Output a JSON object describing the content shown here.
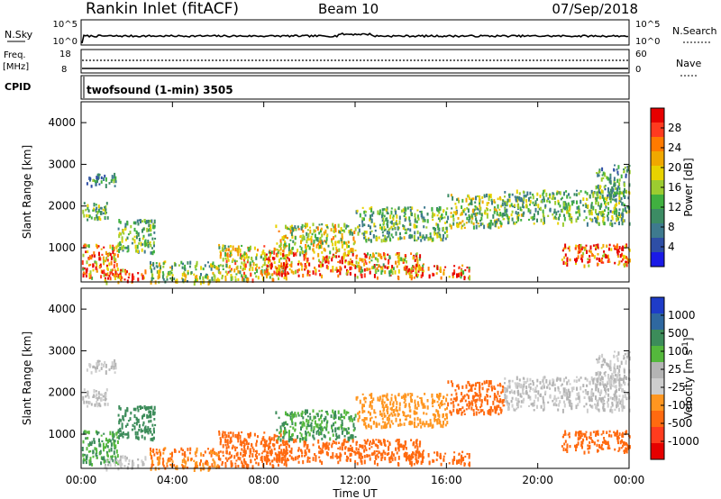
{
  "header": {
    "site": "Rankin Inlet (fitACF)",
    "beam": "Beam 10",
    "date": "07/Sep/2018"
  },
  "status_panels": {
    "nsky_label": "N.Sky",
    "nsky_ticks": [
      "10^5",
      "10^0"
    ],
    "nsearch_label": "N.Search",
    "nsearch_ticks": [
      "10^5",
      "10^0"
    ],
    "freq_label_line1": "Freq.",
    "freq_label_line2": "[MHz]",
    "freq_ticks": [
      "18",
      "8"
    ],
    "nave_label": "Nave",
    "nave_ticks": [
      "60",
      "0"
    ],
    "cpid_label": "CPID",
    "cpid_text": "twofsound (1-min) 3505"
  },
  "x_axis": {
    "title": "Time UT",
    "ticks": [
      "00:00",
      "04:00",
      "08:00",
      "12:00",
      "16:00",
      "20:00",
      "00:00"
    ]
  },
  "power_colorbar": {
    "title": "Power [dB]",
    "labels": [
      "28",
      "24",
      "20",
      "16",
      "12",
      "8",
      "4"
    ],
    "colors": [
      "#e60000",
      "#ff3a1f",
      "#ff7a00",
      "#f0a800",
      "#e8d200",
      "#9ccc30",
      "#40b040",
      "#3c8c64",
      "#3e7a8e",
      "#2e4ea6",
      "#1a1ae6"
    ]
  },
  "velocity_colorbar": {
    "title": "Velocity [m s^-1]",
    "labels": [
      "1000",
      "500",
      "100",
      "25",
      "-25",
      "-100",
      "-500",
      "-1000"
    ],
    "colors": [
      "#1e3cc8",
      "#2f68a0",
      "#3c8c5a",
      "#54b83c",
      "#b4b4b4",
      "#cdcdcd",
      "#ff9620",
      "#ff6a10",
      "#ff3c1e",
      "#e60000"
    ]
  },
  "chart_data": [
    {
      "type": "heatmap",
      "title": "Power",
      "ylabel": "Slant Range [km]",
      "xlabel": "Time UT",
      "y_ticks": [
        "1000",
        "2000",
        "3000",
        "4000"
      ],
      "ylim": [
        180,
        4500
      ],
      "xlim_hours": [
        0,
        24
      ],
      "colorbar_label": "Power [dB]",
      "regions": [
        {
          "t0": 0.0,
          "t1": 1.6,
          "r0": 300,
          "r1": 1100,
          "level": 24
        },
        {
          "t0": 0.0,
          "t1": 1.2,
          "r0": 1700,
          "r1": 2100,
          "level": 12
        },
        {
          "t0": 0.2,
          "t1": 1.5,
          "r0": 2500,
          "r1": 2800,
          "level": 8
        },
        {
          "t0": 1.0,
          "t1": 2.8,
          "r0": 200,
          "r1": 500,
          "level": 28
        },
        {
          "t0": 1.6,
          "t1": 3.2,
          "r0": 900,
          "r1": 1700,
          "level": 12
        },
        {
          "t0": 3.0,
          "t1": 6.0,
          "r0": 200,
          "r1": 700,
          "level": 14
        },
        {
          "t0": 6.0,
          "t1": 9.0,
          "r0": 250,
          "r1": 1100,
          "level": 18
        },
        {
          "t0": 8.0,
          "t1": 12.0,
          "r0": 350,
          "r1": 900,
          "level": 26
        },
        {
          "t0": 8.5,
          "t1": 12.0,
          "r0": 900,
          "r1": 1600,
          "level": 16
        },
        {
          "t0": 12.0,
          "t1": 15.0,
          "r0": 300,
          "r1": 900,
          "level": 20
        },
        {
          "t0": 12.0,
          "t1": 16.0,
          "r0": 1200,
          "r1": 2000,
          "level": 12
        },
        {
          "t0": 14.0,
          "t1": 17.0,
          "r0": 300,
          "r1": 600,
          "level": 24
        },
        {
          "t0": 16.0,
          "t1": 18.5,
          "r0": 1500,
          "r1": 2300,
          "level": 14
        },
        {
          "t0": 18.5,
          "t1": 24.0,
          "r0": 1600,
          "r1": 2400,
          "level": 12
        },
        {
          "t0": 21.0,
          "t1": 24.0,
          "r0": 600,
          "r1": 1100,
          "level": 26
        },
        {
          "t0": 22.5,
          "t1": 24.0,
          "r0": 2200,
          "r1": 3000,
          "level": 10
        }
      ]
    },
    {
      "type": "heatmap",
      "title": "Velocity",
      "ylabel": "Slant Range [km]",
      "xlabel": "Time UT",
      "y_ticks": [
        "1000",
        "2000",
        "3000",
        "4000"
      ],
      "ylim": [
        180,
        4500
      ],
      "xlim_hours": [
        0,
        24
      ],
      "colorbar_label": "Velocity [m s^-1]",
      "regions": [
        {
          "t0": 0.0,
          "t1": 1.6,
          "r0": 300,
          "r1": 1100,
          "level": 100
        },
        {
          "t0": 0.0,
          "t1": 1.2,
          "r0": 1700,
          "r1": 2100,
          "level": 0
        },
        {
          "t0": 0.2,
          "t1": 1.5,
          "r0": 2500,
          "r1": 2800,
          "level": 0
        },
        {
          "t0": 1.0,
          "t1": 2.8,
          "r0": 200,
          "r1": 500,
          "level": 0
        },
        {
          "t0": 1.6,
          "t1": 3.2,
          "r0": 900,
          "r1": 1700,
          "level": 300
        },
        {
          "t0": 3.0,
          "t1": 6.0,
          "r0": 200,
          "r1": 700,
          "level": -100
        },
        {
          "t0": 6.0,
          "t1": 9.0,
          "r0": 250,
          "r1": 1100,
          "level": -200
        },
        {
          "t0": 8.0,
          "t1": 12.0,
          "r0": 350,
          "r1": 900,
          "level": -300
        },
        {
          "t0": 8.5,
          "t1": 12.0,
          "r0": 900,
          "r1": 1600,
          "level": 100
        },
        {
          "t0": 12.0,
          "t1": 15.0,
          "r0": 300,
          "r1": 900,
          "level": -300
        },
        {
          "t0": 12.0,
          "t1": 16.0,
          "r0": 1200,
          "r1": 2000,
          "level": -60
        },
        {
          "t0": 14.0,
          "t1": 17.0,
          "r0": 300,
          "r1": 600,
          "level": -200
        },
        {
          "t0": 16.0,
          "t1": 18.5,
          "r0": 1500,
          "r1": 2300,
          "level": -300
        },
        {
          "t0": 18.5,
          "t1": 24.0,
          "r0": 1600,
          "r1": 2400,
          "level": 0
        },
        {
          "t0": 21.0,
          "t1": 24.0,
          "r0": 600,
          "r1": 1100,
          "level": -200
        },
        {
          "t0": 22.5,
          "t1": 24.0,
          "r0": 2200,
          "r1": 3000,
          "level": 0
        }
      ]
    }
  ]
}
